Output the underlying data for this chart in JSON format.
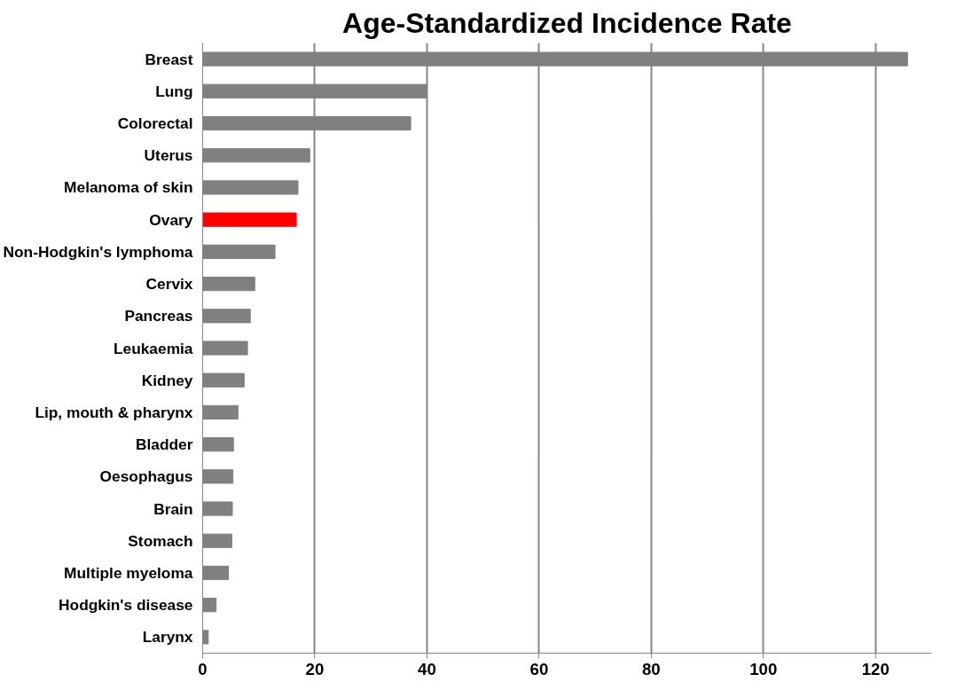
{
  "chart_data": {
    "type": "bar",
    "orientation": "horizontal",
    "title": "Age-Standardized Incidence Rate",
    "categories": [
      "Breast",
      "Lung",
      "Colorectal",
      "Uterus",
      "Melanoma of skin",
      "Ovary",
      "Non-Hodgkin's lymphoma",
      "Cervix",
      "Pancreas",
      "Leukaemia",
      "Kidney",
      "Lip, mouth & pharynx",
      "Bladder",
      "Oesophagus",
      "Brain",
      "Stomach",
      "Multiple myeloma",
      "Hodgkin's disease",
      "Larynx"
    ],
    "values": [
      125.7,
      40,
      37.1,
      19.1,
      17.0,
      16.7,
      12.9,
      9.3,
      8.5,
      8.0,
      7.4,
      6.3,
      5.5,
      5.4,
      5.3,
      5.2,
      4.6,
      2.4,
      1.0
    ],
    "colors": [
      "#808080",
      "#808080",
      "#808080",
      "#808080",
      "#808080",
      "#ff0000",
      "#808080",
      "#808080",
      "#808080",
      "#808080",
      "#808080",
      "#808080",
      "#808080",
      "#808080",
      "#808080",
      "#808080",
      "#808080",
      "#808080",
      "#808080"
    ],
    "xlim": [
      0,
      130
    ],
    "xticks": [
      0,
      20,
      40,
      60,
      80,
      100,
      120
    ],
    "grid": "x"
  }
}
